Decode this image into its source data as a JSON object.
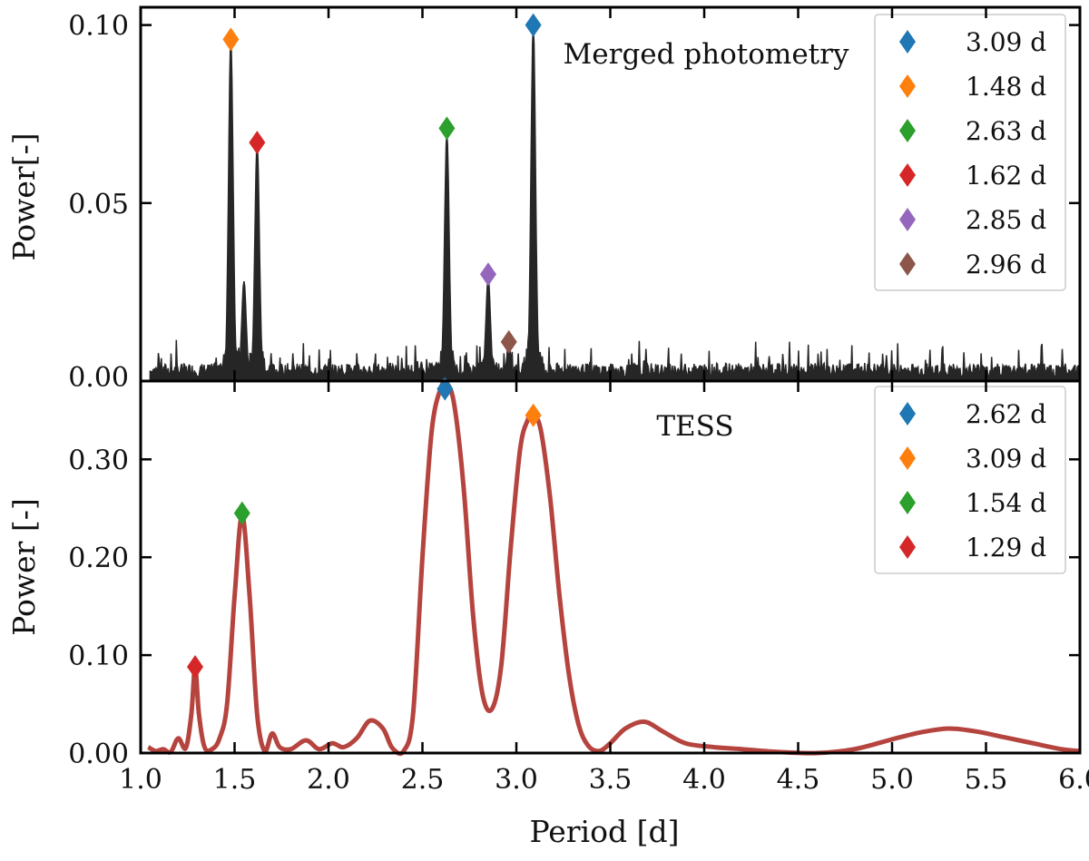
{
  "chart_data": [
    {
      "type": "line",
      "panel": "top",
      "title": "Merged photometry",
      "xlabel": "",
      "ylabel": "Power[-]",
      "xlim": [
        1.0,
        6.0
      ],
      "ylim": [
        0.0,
        0.105
      ],
      "yticks": [
        0.0,
        0.05,
        0.1
      ],
      "ytick_labels": [
        "0.00",
        "0.05",
        "0.10"
      ],
      "line_color": "#262626",
      "title_color": "#111111",
      "legend_position": "top-right",
      "series": [
        {
          "name": "periodogram",
          "peaks": [
            {
              "x": 1.48,
              "y": 0.096
            },
            {
              "x": 1.55,
              "y": 0.028
            },
            {
              "x": 1.62,
              "y": 0.067
            },
            {
              "x": 2.63,
              "y": 0.07
            },
            {
              "x": 2.85,
              "y": 0.029
            },
            {
              "x": 2.96,
              "y": 0.01
            },
            {
              "x": 3.09,
              "y": 0.1
            }
          ],
          "noise_level": 0.005
        }
      ],
      "markers": [
        {
          "label": "3.09 d",
          "x": 3.09,
          "y": 0.1,
          "color": "#1f77b4"
        },
        {
          "label": "1.48 d",
          "x": 1.48,
          "y": 0.096,
          "color": "#ff7f0e"
        },
        {
          "label": "2.63 d",
          "x": 2.63,
          "y": 0.071,
          "color": "#2ca02c"
        },
        {
          "label": "1.62 d",
          "x": 1.62,
          "y": 0.067,
          "color": "#d62728"
        },
        {
          "label": "2.85 d",
          "x": 2.85,
          "y": 0.03,
          "color": "#9467bd"
        },
        {
          "label": "2.96 d",
          "x": 2.96,
          "y": 0.011,
          "color": "#8c564b"
        }
      ]
    },
    {
      "type": "line",
      "panel": "bottom",
      "title": "TESS",
      "xlabel": "Period [d]",
      "ylabel": "Power [-]",
      "xlim": [
        1.0,
        6.0
      ],
      "ylim": [
        0.0,
        0.38
      ],
      "xticks": [
        1.0,
        1.5,
        2.0,
        2.5,
        3.0,
        3.5,
        4.0,
        4.5,
        5.0,
        5.5,
        6.0
      ],
      "xtick_labels": [
        "1.0",
        "1.5",
        "2.0",
        "2.5",
        "3.0",
        "3.5",
        "4.0",
        "4.5",
        "5.0",
        "5.5",
        "6.0"
      ],
      "yticks": [
        0.0,
        0.1,
        0.2,
        0.3
      ],
      "ytick_labels": [
        "0.00",
        "0.10",
        "0.20",
        "0.30"
      ],
      "line_color": "#b5443f",
      "title_color": "#b5443f",
      "legend_position": "top-right",
      "series": [
        {
          "name": "periodogram",
          "x": [
            1.04,
            1.08,
            1.12,
            1.16,
            1.2,
            1.24,
            1.27,
            1.29,
            1.31,
            1.34,
            1.38,
            1.42,
            1.46,
            1.5,
            1.54,
            1.58,
            1.62,
            1.66,
            1.7,
            1.74,
            1.8,
            1.88,
            1.95,
            2.02,
            2.08,
            2.15,
            2.22,
            2.29,
            2.34,
            2.4,
            2.45,
            2.5,
            2.55,
            2.6,
            2.63,
            2.67,
            2.72,
            2.77,
            2.82,
            2.87,
            2.92,
            2.97,
            3.02,
            3.06,
            3.09,
            3.13,
            3.18,
            3.23,
            3.28,
            3.33,
            3.38,
            3.44,
            3.5,
            3.58,
            3.68,
            3.78,
            3.9,
            4.05,
            4.2,
            4.4,
            4.6,
            4.8,
            5.0,
            5.15,
            5.3,
            5.45,
            5.6,
            5.75,
            5.9,
            6.0
          ],
          "y": [
            0.006,
            0.002,
            0.004,
            0.001,
            0.015,
            0.005,
            0.04,
            0.088,
            0.04,
            0.006,
            0.004,
            0.015,
            0.05,
            0.16,
            0.243,
            0.16,
            0.04,
            0.002,
            0.02,
            0.006,
            0.004,
            0.013,
            0.004,
            0.01,
            0.006,
            0.015,
            0.033,
            0.025,
            0.005,
            0.002,
            0.04,
            0.2,
            0.33,
            0.374,
            0.378,
            0.355,
            0.27,
            0.14,
            0.06,
            0.045,
            0.09,
            0.21,
            0.31,
            0.34,
            0.345,
            0.33,
            0.26,
            0.16,
            0.08,
            0.03,
            0.008,
            0.002,
            0.01,
            0.025,
            0.032,
            0.022,
            0.01,
            0.006,
            0.004,
            0.001,
            0.0,
            0.004,
            0.014,
            0.021,
            0.025,
            0.022,
            0.016,
            0.01,
            0.004,
            0.002
          ]
        }
      ],
      "markers": [
        {
          "label": "2.62 d",
          "x": 2.62,
          "y": 0.372,
          "color": "#1f77b4"
        },
        {
          "label": "3.09 d",
          "x": 3.09,
          "y": 0.345,
          "color": "#ff7f0e"
        },
        {
          "label": "1.54 d",
          "x": 1.54,
          "y": 0.245,
          "color": "#2ca02c"
        },
        {
          "label": "1.29 d",
          "x": 1.29,
          "y": 0.088,
          "color": "#d62728"
        }
      ]
    }
  ]
}
